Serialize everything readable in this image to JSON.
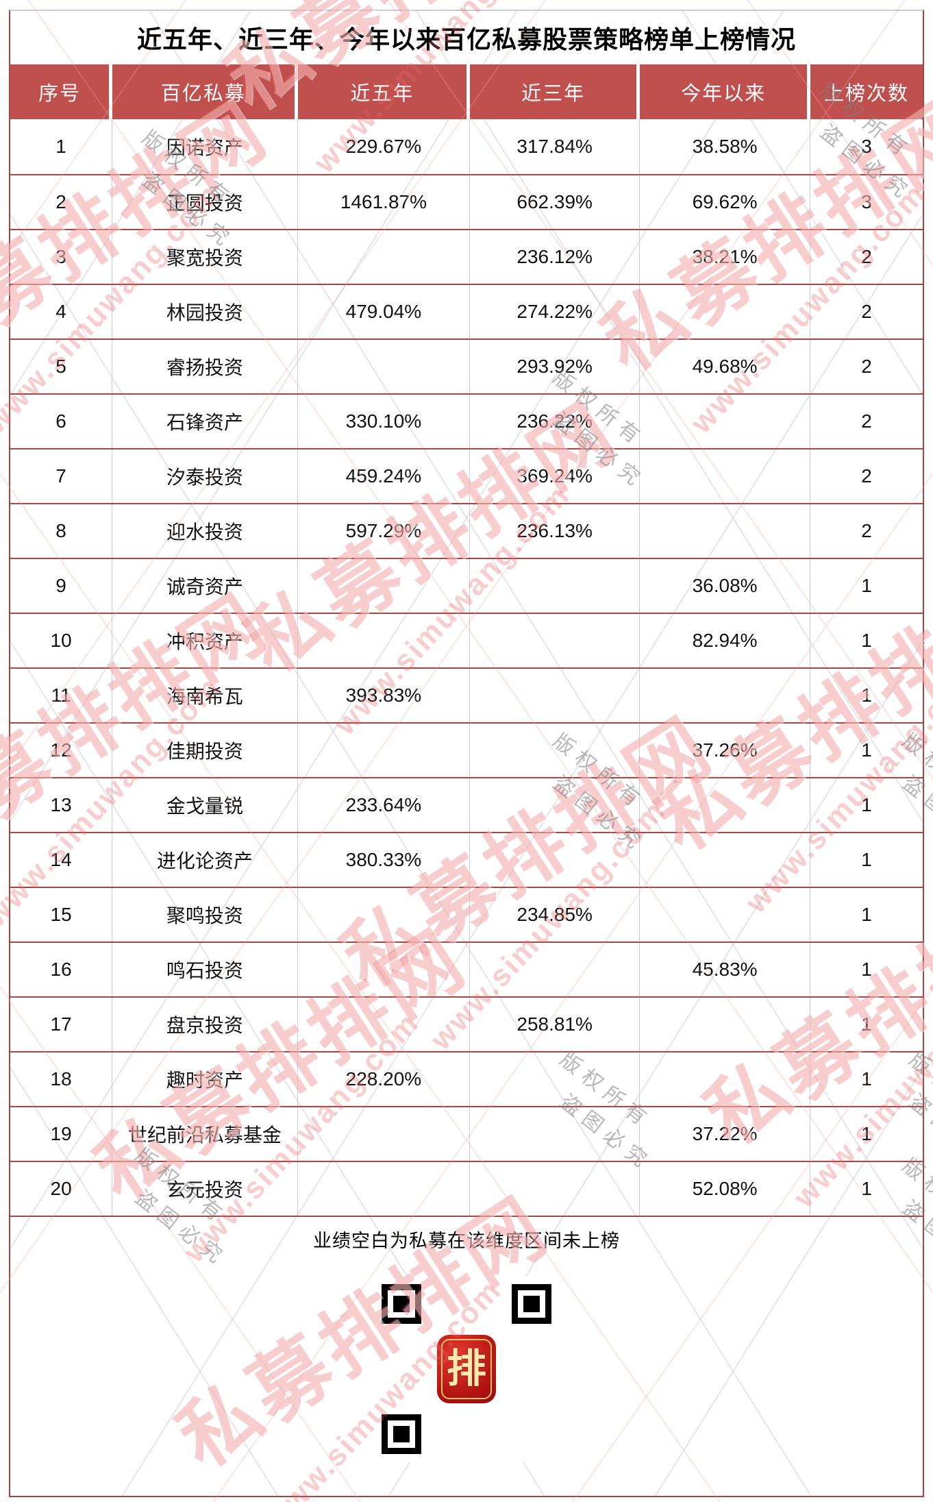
{
  "chart_data": {
    "type": "table",
    "title": "近五年、近三年、今年以来百亿私募股票策略榜单上榜情况",
    "columns": [
      "序号",
      "百亿私募",
      "近五年",
      "近三年",
      "今年以来",
      "上榜次数"
    ],
    "rows": [
      [
        "1",
        "因诺资产",
        "229.67%",
        "317.84%",
        "38.58%",
        "3"
      ],
      [
        "2",
        "正圆投资",
        "1461.87%",
        "662.39%",
        "69.62%",
        "3"
      ],
      [
        "3",
        "聚宽投资",
        "",
        "236.12%",
        "38.21%",
        "2"
      ],
      [
        "4",
        "林园投资",
        "479.04%",
        "274.22%",
        "",
        "2"
      ],
      [
        "5",
        "睿扬投资",
        "",
        "293.92%",
        "49.68%",
        "2"
      ],
      [
        "6",
        "石锋资产",
        "330.10%",
        "236.22%",
        "",
        "2"
      ],
      [
        "7",
        "汐泰投资",
        "459.24%",
        "369.24%",
        "",
        "2"
      ],
      [
        "8",
        "迎水投资",
        "597.29%",
        "236.13%",
        "",
        "2"
      ],
      [
        "9",
        "诚奇资产",
        "",
        "",
        "36.08%",
        "1"
      ],
      [
        "10",
        "冲积资产",
        "",
        "",
        "82.94%",
        "1"
      ],
      [
        "11",
        "海南希瓦",
        "393.83%",
        "",
        "",
        "1"
      ],
      [
        "12",
        "佳期投资",
        "",
        "",
        "37.26%",
        "1"
      ],
      [
        "13",
        "金戈量锐",
        "233.64%",
        "",
        "",
        "1"
      ],
      [
        "14",
        "进化论资产",
        "380.33%",
        "",
        "",
        "1"
      ],
      [
        "15",
        "聚鸣投资",
        "",
        "234.85%",
        "",
        "1"
      ],
      [
        "16",
        "鸣石投资",
        "",
        "",
        "45.83%",
        "1"
      ],
      [
        "17",
        "盘京投资",
        "",
        "258.81%",
        "",
        "1"
      ],
      [
        "18",
        "趣时资产",
        "228.20%",
        "",
        "",
        "1"
      ],
      [
        "19",
        "世纪前沿私募基金",
        "",
        "",
        "37.22%",
        "1"
      ],
      [
        "20",
        "玄元投资",
        "",
        "",
        "52.08%",
        "1"
      ]
    ],
    "note": "业绩空白为私募在该维度区间未上榜",
    "layout_hints": {
      "grid": "red row dividers, gray column dividers",
      "header_style": "white on brick red"
    }
  },
  "watermark": {
    "brand": "私募排排网",
    "url": "www.simuwang.com",
    "copyright_line1": "版权所有",
    "copyright_line2": "盗图必究",
    "qr_seal": "排"
  },
  "colors": {
    "header_bg": "#c0504d",
    "row_divider": "#a94442",
    "column_divider": "#c9cdd9",
    "watermark_pink": "#e66363",
    "copyright_gray": "#7d7d82",
    "qr_logo_red": "#b01210",
    "qr_seal_gold": "#ffe9ad"
  }
}
